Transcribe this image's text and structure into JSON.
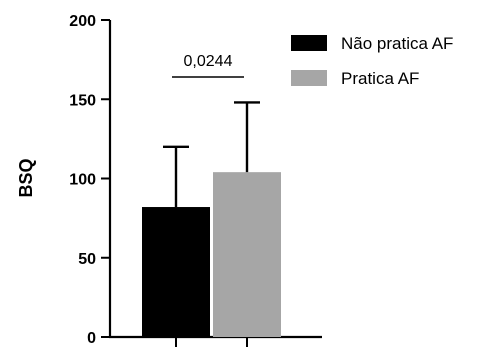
{
  "chart_data": {
    "type": "bar",
    "ylabel": "BSQ",
    "ylim": [
      0,
      200
    ],
    "yticks": [
      0,
      50,
      100,
      150,
      200
    ],
    "ytick_labels": [
      "0",
      "50",
      "100",
      "150",
      "200"
    ],
    "grid": false,
    "legend_position": "top-right",
    "series": [
      {
        "name": "Não pratica AF",
        "value": 82,
        "error": 38,
        "color": "#000000"
      },
      {
        "name": "Pratica AF",
        "value": 104,
        "error": 44,
        "color": "#a6a6a6"
      }
    ],
    "annotation": {
      "text": "0,0244"
    }
  }
}
